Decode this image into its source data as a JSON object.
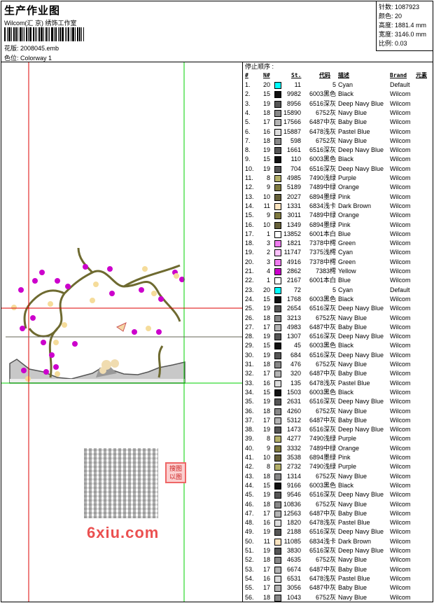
{
  "header": {
    "title": "生产作业图",
    "company": "Wilcom(汇 京) 绣饰工作室",
    "design_label": "花版: 2008045.emb",
    "colorway_label": "色位: Colorway 1"
  },
  "info": {
    "stitches": "针数: 1087923",
    "colors": "颜色: 20",
    "height": "高度: 1881.4 mm",
    "width": "宽度: 3146.0 mm",
    "scale": "比例: 0.03"
  },
  "table": {
    "stop_label": "停止顺序 :",
    "headers": {
      "num": "#",
      "n": "N#",
      "st": "St.",
      "code": "代码",
      "desc": "描述",
      "brand": "Brand",
      "element": "元素"
    },
    "rows": [
      [
        "1.",
        "20",
        "#00ffff",
        "11",
        "5",
        "Cyan",
        "Default"
      ],
      [
        "2.",
        "15",
        "#111111",
        "9982",
        "6003黑色",
        "Black",
        "Wilcom"
      ],
      [
        "3.",
        "19",
        "#555555",
        "8956",
        "6516深灰",
        "Deep Navy Blue",
        "Wilcom"
      ],
      [
        "4.",
        "18",
        "#888888",
        "15890",
        "6752灰",
        "Navy Blue",
        "Wilcom"
      ],
      [
        "5.",
        "17",
        "#b4b4b4",
        "17566",
        "6487中灰",
        "Baby Blue",
        "Wilcom"
      ],
      [
        "6.",
        "16",
        "#dcdcdc",
        "15887",
        "6478浅灰",
        "Pastel Blue",
        "Wilcom"
      ],
      [
        "7.",
        "18",
        "#888888",
        "598",
        "6752灰",
        "Navy Blue",
        "Wilcom"
      ],
      [
        "8.",
        "19",
        "#555555",
        "1661",
        "6516深灰",
        "Deep Navy Blue",
        "Wilcom"
      ],
      [
        "9.",
        "15",
        "#111111",
        "110",
        "6003黑色",
        "Black",
        "Wilcom"
      ],
      [
        "10.",
        "19",
        "#555555",
        "704",
        "6516深灰",
        "Deep Navy Blue",
        "Wilcom"
      ],
      [
        "11.",
        "8",
        "#b4b06a",
        "4985",
        "7490浅绿",
        "Purple",
        "Wilcom"
      ],
      [
        "12.",
        "9",
        "#7f7a40",
        "5189",
        "7489中绿",
        "Orange",
        "Wilcom"
      ],
      [
        "13.",
        "10",
        "#66603a",
        "2027",
        "6894墨绿",
        "Pink",
        "Wilcom"
      ],
      [
        "14.",
        "11",
        "#fce4c0",
        "1331",
        "6834浅卡",
        "Dark Brown",
        "Wilcom"
      ],
      [
        "15.",
        "9",
        "#7f7a40",
        "3011",
        "7489中绿",
        "Orange",
        "Wilcom"
      ],
      [
        "16.",
        "10",
        "#66603a",
        "1349",
        "6894墨绿",
        "Pink",
        "Wilcom"
      ],
      [
        "17.",
        "1",
        "#ffffff",
        "13852",
        "6001本白",
        "Blue",
        "Wilcom"
      ],
      [
        "18.",
        "3",
        "#f07cf0",
        "1821",
        "7378中樗",
        "Green",
        "Wilcom"
      ],
      [
        "19.",
        "2",
        "#fcc0fc",
        "11747",
        "7375浅樗",
        "Cyan",
        "Wilcom"
      ],
      [
        "20.",
        "3",
        "#f07cf0",
        "4916",
        "7378中樗",
        "Green",
        "Wilcom"
      ],
      [
        "21.",
        "4",
        "#cc00cc",
        "2862",
        "7383樗",
        "Yellow",
        "Wilcom"
      ],
      [
        "22.",
        "1",
        "#ffffff",
        "2167",
        "6001本白",
        "Blue",
        "Wilcom"
      ],
      [
        "23.",
        "20",
        "#00ffff",
        "72",
        "5",
        "Cyan",
        "Default"
      ],
      [
        "24.",
        "15",
        "#111111",
        "1768",
        "6003黑色",
        "Black",
        "Wilcom"
      ],
      [
        "25.",
        "19",
        "#555555",
        "2654",
        "6516深灰",
        "Deep Navy Blue",
        "Wilcom"
      ],
      [
        "26.",
        "18",
        "#888888",
        "3213",
        "6752灰",
        "Navy Blue",
        "Wilcom"
      ],
      [
        "27.",
        "17",
        "#b4b4b4",
        "4983",
        "6487中灰",
        "Baby Blue",
        "Wilcom"
      ],
      [
        "28.",
        "19",
        "#555555",
        "1307",
        "6516深灰",
        "Deep Navy Blue",
        "Wilcom"
      ],
      [
        "29.",
        "15",
        "#111111",
        "45",
        "6003黑色",
        "Black",
        "Wilcom"
      ],
      [
        "30.",
        "19",
        "#555555",
        "684",
        "6516深灰",
        "Deep Navy Blue",
        "Wilcom"
      ],
      [
        "31.",
        "18",
        "#888888",
        "476",
        "6752灰",
        "Navy Blue",
        "Wilcom"
      ],
      [
        "32.",
        "17",
        "#b4b4b4",
        "320",
        "6487中灰",
        "Baby Blue",
        "Wilcom"
      ],
      [
        "33.",
        "16",
        "#dcdcdc",
        "135",
        "6478浅灰",
        "Pastel Blue",
        "Wilcom"
      ],
      [
        "34.",
        "15",
        "#111111",
        "1503",
        "6003黑色",
        "Black",
        "Wilcom"
      ],
      [
        "35.",
        "19",
        "#555555",
        "2631",
        "6516深灰",
        "Deep Navy Blue",
        "Wilcom"
      ],
      [
        "36.",
        "18",
        "#888888",
        "4260",
        "6752灰",
        "Navy Blue",
        "Wilcom"
      ],
      [
        "37.",
        "17",
        "#b4b4b4",
        "5312",
        "6487中灰",
        "Baby Blue",
        "Wilcom"
      ],
      [
        "38.",
        "19",
        "#555555",
        "1473",
        "6516深灰",
        "Deep Navy Blue",
        "Wilcom"
      ],
      [
        "39.",
        "8",
        "#b4b06a",
        "4277",
        "7490浅绿",
        "Purple",
        "Wilcom"
      ],
      [
        "40.",
        "9",
        "#7f7a40",
        "3332",
        "7489中绿",
        "Orange",
        "Wilcom"
      ],
      [
        "41.",
        "10",
        "#66603a",
        "3538",
        "6894墨绿",
        "Pink",
        "Wilcom"
      ],
      [
        "42.",
        "8",
        "#b4b06a",
        "2732",
        "7490浅绿",
        "Purple",
        "Wilcom"
      ],
      [
        "43.",
        "18",
        "#888888",
        "1314",
        "6752灰",
        "Navy Blue",
        "Wilcom"
      ],
      [
        "44.",
        "15",
        "#111111",
        "9166",
        "6003黑色",
        "Black",
        "Wilcom"
      ],
      [
        "45.",
        "19",
        "#555555",
        "9546",
        "6516深灰",
        "Deep Navy Blue",
        "Wilcom"
      ],
      [
        "46.",
        "18",
        "#888888",
        "10836",
        "6752灰",
        "Navy Blue",
        "Wilcom"
      ],
      [
        "47.",
        "17",
        "#b4b4b4",
        "12563",
        "6487中灰",
        "Baby Blue",
        "Wilcom"
      ],
      [
        "48.",
        "16",
        "#dcdcdc",
        "1820",
        "6478浅灰",
        "Pastel Blue",
        "Wilcom"
      ],
      [
        "49.",
        "19",
        "#555555",
        "2188",
        "6516深灰",
        "Deep Navy Blue",
        "Wilcom"
      ],
      [
        "50.",
        "11",
        "#fce4c0",
        "11085",
        "6834浅卡",
        "Dark Brown",
        "Wilcom"
      ],
      [
        "51.",
        "19",
        "#555555",
        "3830",
        "6516深灰",
        "Deep Navy Blue",
        "Wilcom"
      ],
      [
        "52.",
        "18",
        "#888888",
        "4635",
        "6752灰",
        "Navy Blue",
        "Wilcom"
      ],
      [
        "53.",
        "17",
        "#b4b4b4",
        "6674",
        "6487中灰",
        "Baby Blue",
        "Wilcom"
      ],
      [
        "54.",
        "16",
        "#dcdcdc",
        "6531",
        "6478浅灰",
        "Pastel Blue",
        "Wilcom"
      ],
      [
        "55.",
        "17",
        "#b4b4b4",
        "3056",
        "6487中灰",
        "Baby Blue",
        "Wilcom"
      ],
      [
        "56.",
        "18",
        "#888888",
        "1043",
        "6752灰",
        "Navy Blue",
        "Wilcom"
      ]
    ]
  },
  "watermark": {
    "text": "6xiu.com",
    "seal": "搜图 以图"
  }
}
